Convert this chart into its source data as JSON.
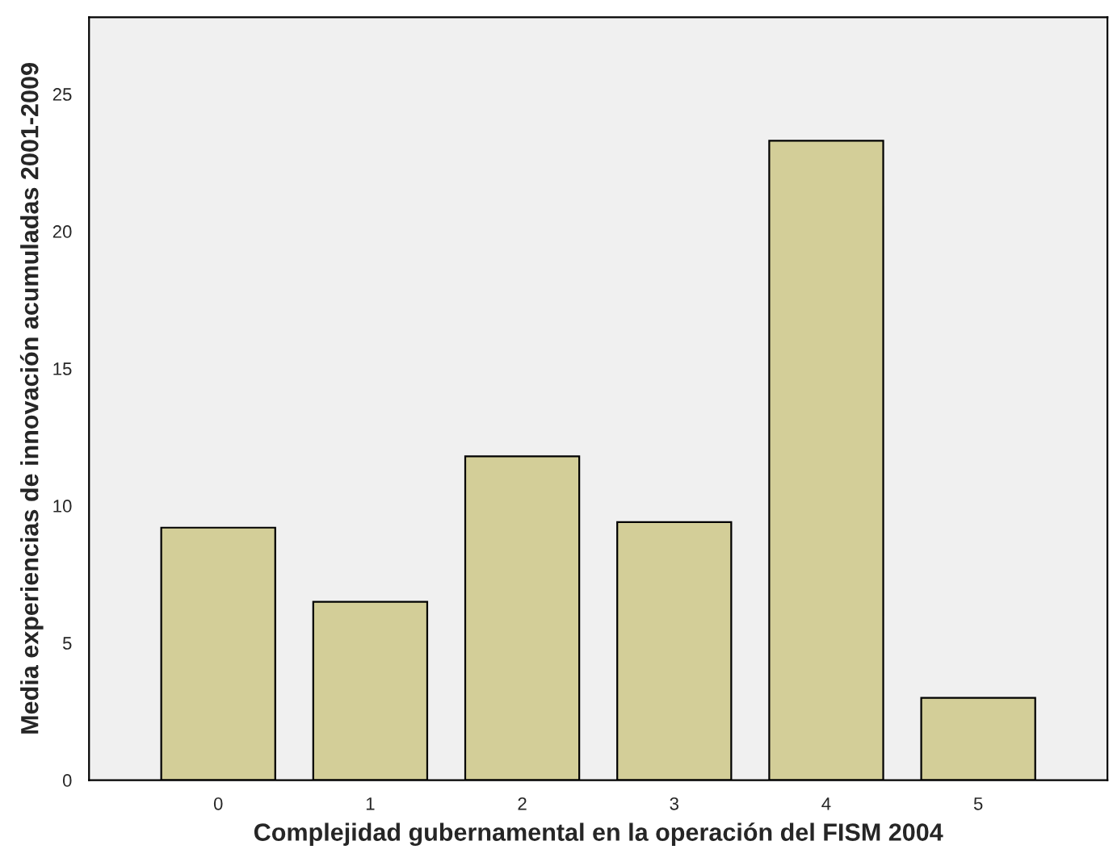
{
  "chart_data": {
    "type": "bar",
    "xlabel": "Complejidad gubernamental en la operación del FISM 2004",
    "ylabel": "Media experiencias de innovación acumuladas 2001-2009",
    "categories": [
      "0",
      "1",
      "2",
      "3",
      "4",
      "5"
    ],
    "values": [
      9.2,
      6.5,
      11.8,
      9.4,
      23.3,
      3.0
    ],
    "color": "#d3ce98",
    "ylim": [
      0,
      27.8
    ],
    "yticks": [
      0,
      5,
      10,
      15,
      20,
      25
    ],
    "grid": false
  }
}
